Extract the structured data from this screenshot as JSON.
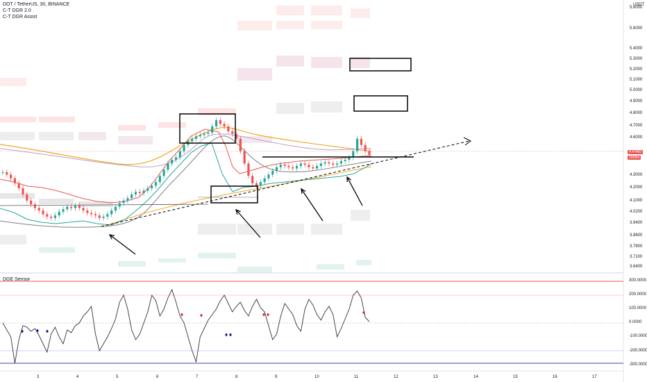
{
  "header": {
    "symbol_line": "DOT / TetherUS, 30, BINANCE",
    "indicator1": "C-T DGR 2.0",
    "indicator2": "C-T DGR Assist",
    "quote_currency": "USDT"
  },
  "oscillator": {
    "title": "DGE Sensor"
  },
  "price_axis": [
    "5.8000",
    "5.6000",
    "5.4000",
    "5.3000",
    "5.2000",
    "5.1000",
    "5.0000",
    "4.9000",
    "4.8000",
    "4.7000",
    "4.6000",
    "4.3000",
    "4.2000",
    "4.1000",
    "4.0200",
    "3.9400",
    "3.8600",
    "3.7800",
    "3.7100",
    "3.6400"
  ],
  "price_tags": {
    "last": "4.47400",
    "second": "1h59m"
  },
  "osc_axis": [
    "300.0000",
    "200.0000",
    "100.0000",
    "0.0000",
    "-100.0000",
    "-200.0000",
    "-300.0000"
  ],
  "time_axis": [
    "3",
    "4",
    "5",
    "6",
    "7",
    "8",
    "9",
    "10",
    "11",
    "12",
    "13",
    "14",
    "15",
    "16",
    "17"
  ],
  "chart_data": {
    "type": "line",
    "series": [
      {
        "values": [
          4.33,
          4.31,
          4.28,
          4.24,
          4.2,
          4.15,
          4.1,
          4.07,
          4.04,
          4.02,
          3.99,
          3.97,
          3.96,
          3.98,
          4.01,
          4.03,
          4.05,
          4.04,
          4.06,
          4.04,
          4.02,
          4.0,
          3.99,
          3.98,
          3.96,
          3.97,
          3.99,
          4.02,
          4.05,
          4.08,
          4.1,
          4.12,
          4.15,
          4.17,
          4.16,
          4.18,
          4.2,
          4.22,
          4.25,
          4.3,
          4.35,
          4.4,
          4.43,
          4.45,
          4.5,
          4.55,
          4.58,
          4.6,
          4.62,
          4.63,
          4.64,
          4.65,
          4.7,
          4.75,
          4.72,
          4.7,
          4.66,
          4.64,
          4.6,
          4.5,
          4.4,
          4.3,
          4.24,
          4.22,
          4.25,
          4.28,
          4.31,
          4.34,
          4.37,
          4.39,
          4.38,
          4.37,
          4.36,
          4.38,
          4.4,
          4.39,
          4.37,
          4.36,
          4.38,
          4.4,
          4.41,
          4.4,
          4.39,
          4.4,
          4.42,
          4.43,
          4.45,
          4.5,
          4.6,
          4.55,
          4.5,
          4.47
        ]
      }
    ],
    "oscillator_values": [
      0,
      -50,
      -100,
      -290,
      -120,
      -20,
      -30,
      -60,
      -40,
      -90,
      -150,
      -210,
      -80,
      -30,
      -100,
      -150,
      -50,
      -70,
      -20,
      0,
      50,
      80,
      120,
      -80,
      -200,
      -150,
      -100,
      -40,
      30,
      150,
      200,
      100,
      -50,
      -120,
      -80,
      0,
      80,
      200,
      160,
      50,
      100,
      180,
      240,
      150,
      50,
      0,
      -100,
      -200,
      -280,
      -100,
      -40,
      20,
      60,
      100,
      160,
      200,
      140,
      80,
      120,
      150,
      90,
      50,
      120,
      170,
      110,
      80,
      -20,
      -120,
      -80,
      50,
      140,
      100,
      60,
      -20,
      -60,
      100,
      170,
      130,
      60,
      20,
      80,
      120,
      60,
      -100,
      -40,
      30,
      100,
      200,
      230,
      180,
      40,
      10
    ]
  }
}
